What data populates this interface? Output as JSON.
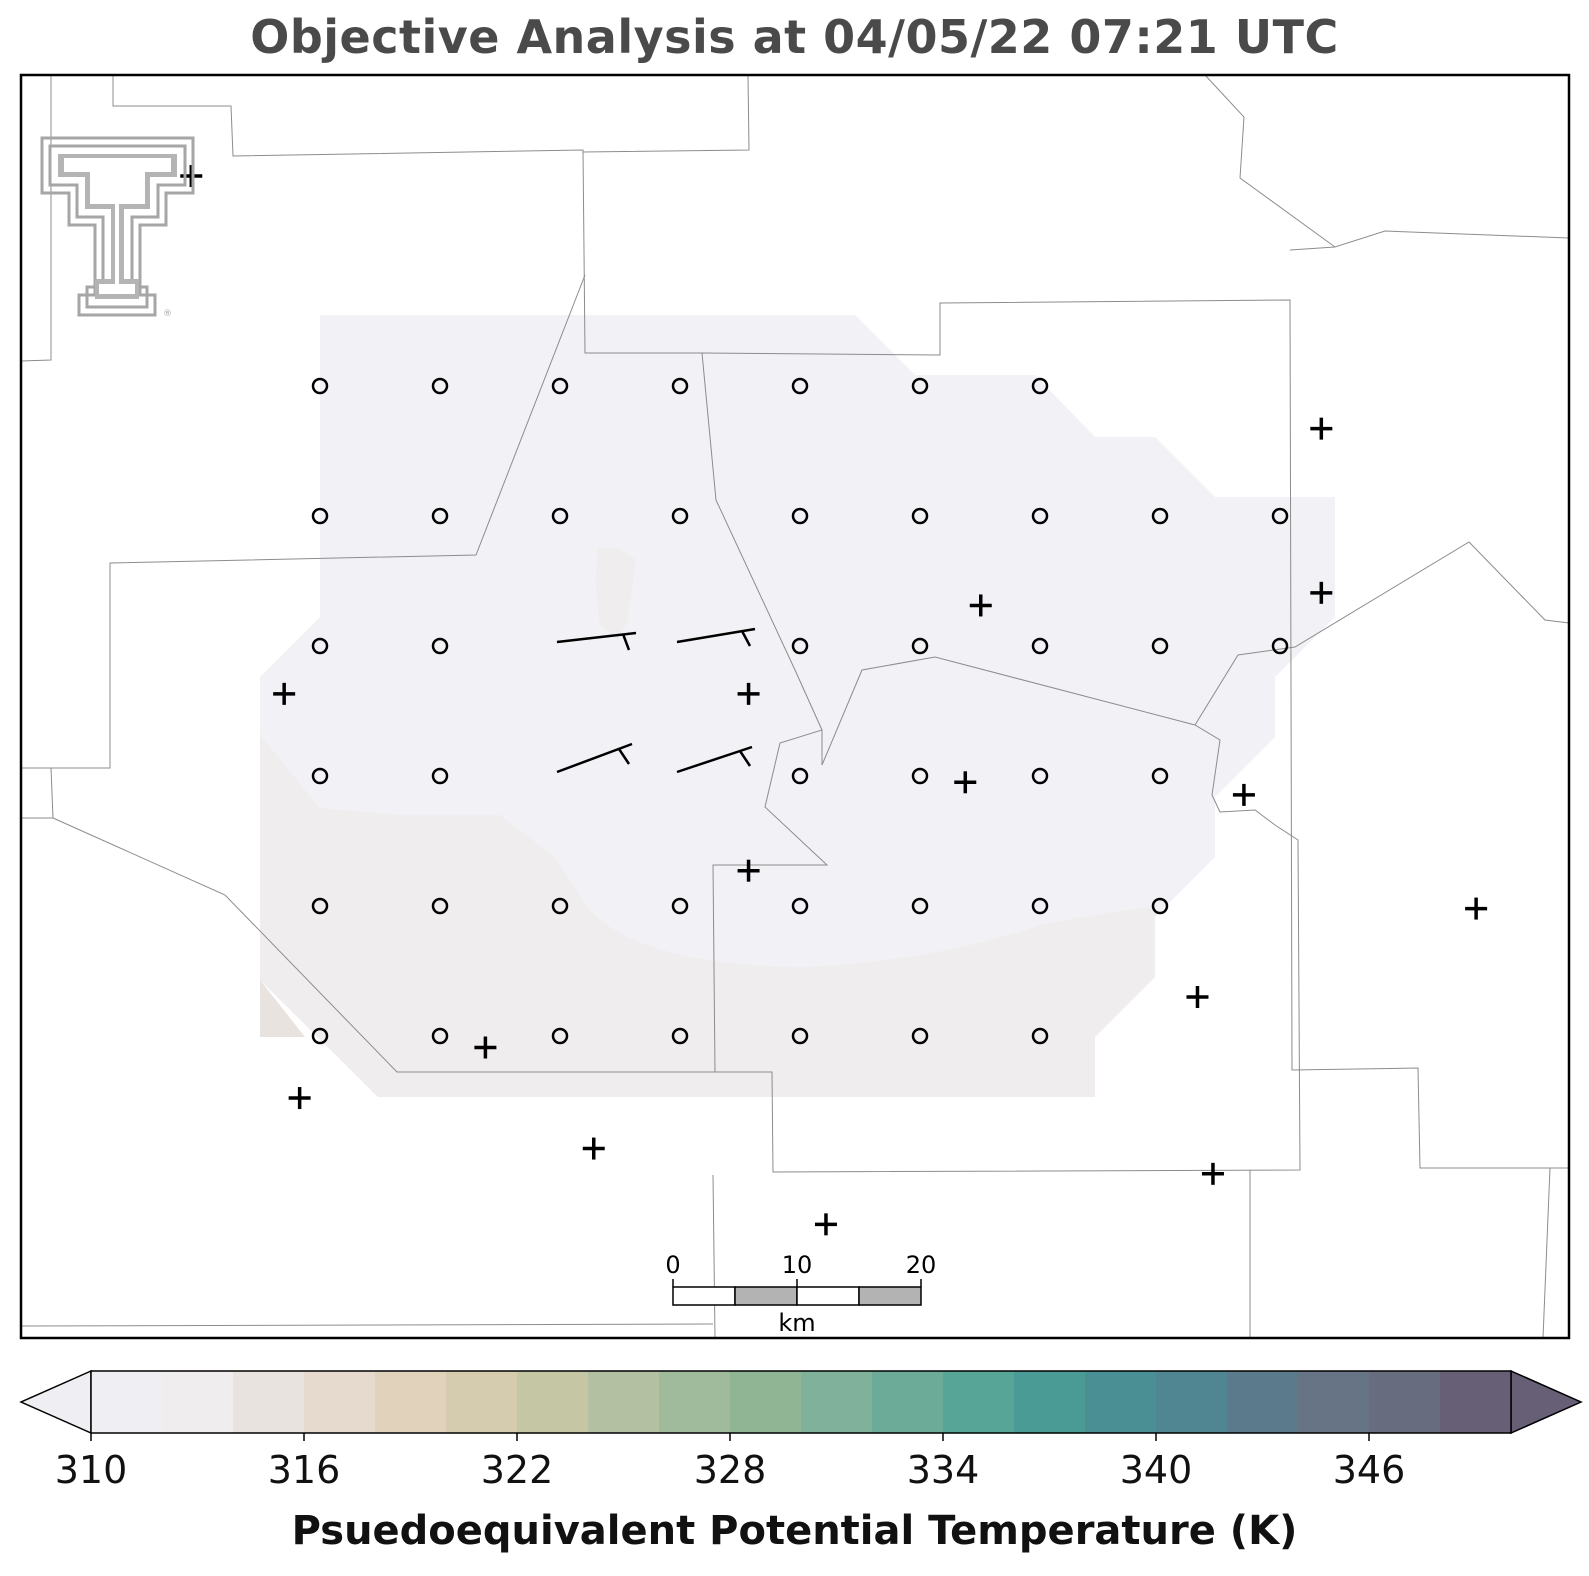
{
  "title": "Objective Analysis at 04/05/22 07:21 UTC",
  "logo": {
    "name": "texas-tech-double-t",
    "color": "#a6a6a6"
  },
  "colorbar": {
    "label": "Psuedoequivalent Potential Temperature (K)",
    "min": 310,
    "max": 350,
    "step": 2,
    "tick_values": [
      "310",
      "316",
      "322",
      "328",
      "334",
      "340",
      "346"
    ],
    "extend": "both",
    "colors": [
      "#eeeef3",
      "#efeded",
      "#e9e3df",
      "#e5dacd",
      "#e1d2bc",
      "#d5ccaf",
      "#c4c6a4",
      "#b3c1a2",
      "#a0bb9c",
      "#90b594",
      "#80b19a",
      "#6cab98",
      "#57a597",
      "#4a9b96",
      "#4a8f94",
      "#508592",
      "#5b7a8b",
      "#667485",
      "#676c7f",
      "#665f76"
    ]
  },
  "scale_bar": {
    "unit": "km",
    "labels": [
      "0",
      "10",
      "20"
    ]
  },
  "analysis": {
    "shaded_regions": [
      {
        "level": 310,
        "color": "#f2f2f6"
      },
      {
        "level": 312,
        "color": "#efeded"
      },
      {
        "level": 314,
        "color": "#e9e3df"
      }
    ]
  },
  "stations": [
    {
      "lon": 0.18,
      "lat": 0.81
    },
    {
      "lon": 0.37,
      "lat": 0.85
    },
    {
      "lon": 0.3,
      "lat": 0.77
    },
    {
      "lon": 0.47,
      "lat": 0.63
    },
    {
      "lon": 0.47,
      "lat": 0.49
    },
    {
      "lon": 0.17,
      "lat": 0.49
    },
    {
      "lon": 0.61,
      "lat": 0.56
    },
    {
      "lon": 0.62,
      "lat": 0.42
    },
    {
      "lon": 0.76,
      "lat": 0.73
    },
    {
      "lon": 0.79,
      "lat": 0.57
    },
    {
      "lon": 0.84,
      "lat": 0.41
    },
    {
      "lon": 0.94,
      "lat": 0.66
    },
    {
      "lon": 0.84,
      "lat": 0.28
    },
    {
      "lon": 0.11,
      "lat": 0.08
    },
    {
      "lon": 0.52,
      "lat": 0.91
    },
    {
      "lon": 0.77,
      "lat": 0.87
    }
  ],
  "wind_barbs": [
    {
      "speed_kt": 10,
      "direction_deg": 265
    },
    {
      "speed_kt": 10,
      "direction_deg": 265
    },
    {
      "speed_kt": 10,
      "direction_deg": 245
    },
    {
      "speed_kt": 10,
      "direction_deg": 245
    }
  ]
}
